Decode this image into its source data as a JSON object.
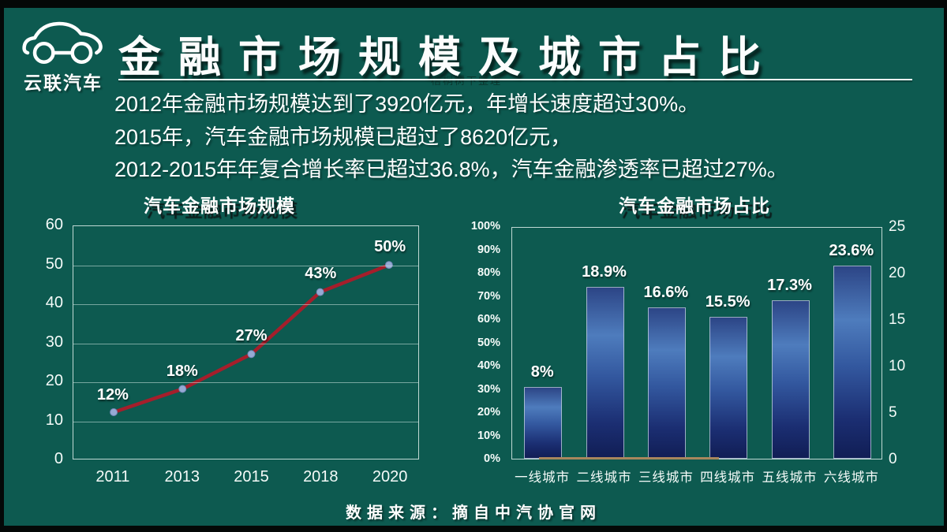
{
  "colors": {
    "background": "#0d5a50",
    "frame": "#040807",
    "line_series": "#a51e2b",
    "marker": "#96aad4",
    "bar_top": "#2c4586",
    "bar_light": "#4e7cbd",
    "bar_dark": "#111e55",
    "baseline_accent": "#a8875d",
    "grid": "rgba(208,231,225,0.55)"
  },
  "logo": {
    "label": "云联汽车"
  },
  "header": {
    "title": "金融市场规模及城市占比",
    "watermark": "梧桐树下整理"
  },
  "intro": {
    "lines": [
      "2012年金融市场规模达到了3920亿元，年增长速度超过30%。",
      "2015年，汽车金融市场规模已超过了8620亿元，",
      "2012-2015年年复合增长率已超过36.8%，汽车金融渗透率已超过27%。"
    ]
  },
  "footer": {
    "source": "数据来源：摘自中汽协官网"
  },
  "chart_data": [
    {
      "type": "line",
      "title": "汽车金融市场规模",
      "x": [
        "2011",
        "2013",
        "2015",
        "2018",
        "2020"
      ],
      "values": [
        12,
        18,
        27,
        43,
        50
      ],
      "point_labels": [
        "12%",
        "18%",
        "27%",
        "43%",
        "50%"
      ],
      "ylim": [
        0,
        60
      ],
      "yticks": [
        0,
        10,
        20,
        30,
        40,
        50,
        60
      ],
      "grid": true,
      "legend": "none",
      "xlabel": "",
      "ylabel": ""
    },
    {
      "type": "bar",
      "title": "汽车金融市场占比",
      "categories": [
        "一线城市",
        "二线城市",
        "三线城市",
        "四线城市",
        "五线城市",
        "六线城市"
      ],
      "values": [
        8,
        18.9,
        16.6,
        15.5,
        17.3,
        23.6
      ],
      "bar_labels": [
        "8%",
        "18.9%",
        "16.6%",
        "15.5%",
        "17.3%",
        "23.6%"
      ],
      "left_axis": {
        "lim": [
          0,
          100
        ],
        "ticks": [
          "0%",
          "10%",
          "20%",
          "30%",
          "40%",
          "50%",
          "60%",
          "70%",
          "80%",
          "90%",
          "100%"
        ]
      },
      "right_axis": {
        "lim": [
          0,
          25
        ],
        "ticks": [
          0,
          5,
          10,
          15,
          20,
          25
        ]
      },
      "display_height_pct": [
        31,
        74,
        65,
        61,
        68,
        83
      ],
      "grid": false,
      "legend": "none",
      "xlabel": "",
      "ylabel": ""
    }
  ]
}
